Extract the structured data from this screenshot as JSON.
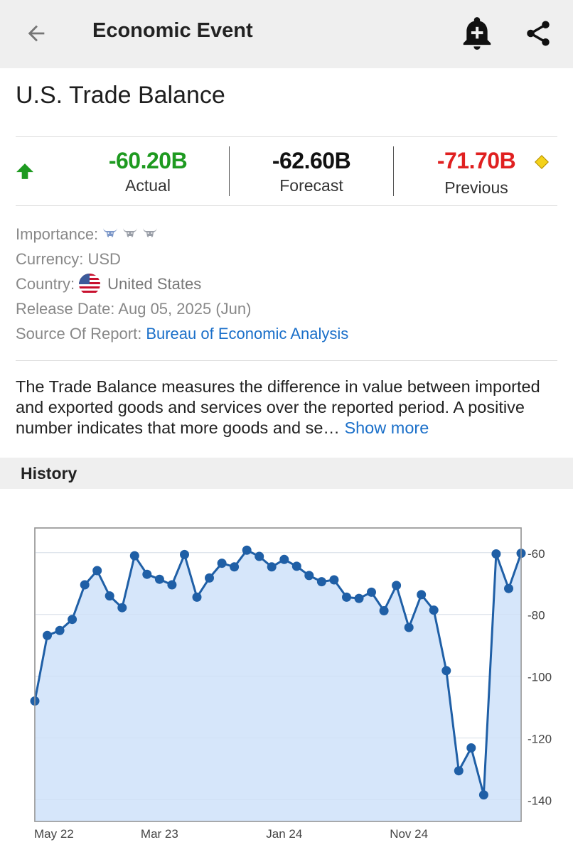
{
  "appbar": {
    "title": "Economic Event",
    "back_icon": "arrow-left-icon",
    "alert_icon": "bell-plus-icon",
    "share_icon": "share-icon"
  },
  "event": {
    "title": "U.S. Trade Balance"
  },
  "values": {
    "trend_icon": "arrow-up-icon",
    "actual": {
      "value": "-60.20B",
      "label": "Actual",
      "color": "#1e9a20"
    },
    "forecast": {
      "value": "-62.60B",
      "label": "Forecast",
      "color": "#111111"
    },
    "previous": {
      "value": "-71.70B",
      "label": "Previous",
      "color": "#e02020"
    },
    "revised_icon": "diamond-icon"
  },
  "details": {
    "importance_label": "Importance:",
    "importance_level": 1,
    "importance_max": 3,
    "currency": "Currency: USD",
    "country_label": "Country:",
    "country_value": "United States",
    "release_date": "Release Date: Aug 05, 2025 (Jun)",
    "source_label": "Source Of Report:",
    "source_value": "Bureau of Economic Analysis"
  },
  "description": {
    "text": "The Trade Balance measures the difference in value between imported and exported goods and services over the reported period. A positive number indicates that more goods and se…",
    "more_label": "Show more"
  },
  "history": {
    "label": "History"
  },
  "chart_data": {
    "type": "area",
    "x_tick_labels": [
      "May 22",
      "Mar 23",
      "Jan 24",
      "Nov 24"
    ],
    "y_tick_labels": [
      "-60",
      "-80",
      "-100",
      "-120",
      "-140"
    ],
    "ylim": [
      -147,
      -52
    ],
    "grid": true,
    "line_color": "#1f5fa6",
    "fill_color": "#d6e6fa",
    "series": [
      {
        "values": [
          -108.0,
          -86.8,
          -85.2,
          -81.6,
          -70.4,
          -65.8,
          -74.0,
          -77.8,
          -61.0,
          -67.0,
          -68.6,
          -70.4,
          -60.6,
          -74.4,
          -68.2,
          -63.4,
          -64.6,
          -59.2,
          -61.2,
          -64.6,
          -62.2,
          -64.4,
          -67.4,
          -69.4,
          -68.8,
          -74.4,
          -74.8,
          -72.8,
          -78.8,
          -70.6,
          -84.2,
          -73.6,
          -78.6,
          -98.2,
          -130.6,
          -123.2,
          -138.4,
          -60.4,
          -71.6,
          -60.2
        ]
      }
    ]
  }
}
